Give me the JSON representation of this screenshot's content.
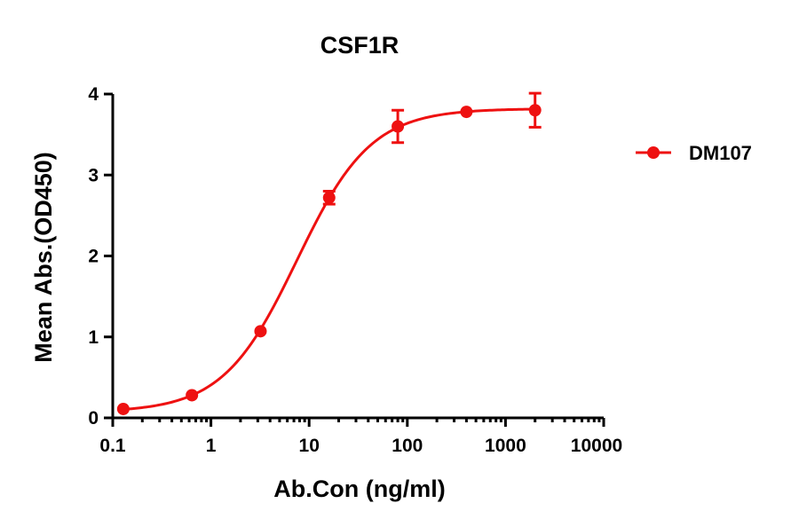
{
  "chart_data": {
    "type": "scatter",
    "title": "CSF1R",
    "xlabel": "Ab.Con (ng/ml)",
    "ylabel": "Mean Abs.(OD450)",
    "x_scale": "log",
    "xlim": [
      0.1,
      10000
    ],
    "ylim": [
      0,
      4
    ],
    "x_ticks": [
      "0.1",
      "1",
      "10",
      "100",
      "1000",
      "10000"
    ],
    "y_ticks": [
      "0",
      "1",
      "2",
      "3",
      "4"
    ],
    "grid": false,
    "legend_position": "right",
    "series": [
      {
        "name": "DM107",
        "color": "#ee1111",
        "marker": "circle",
        "fit": "sigmoidal 4PL",
        "points": [
          {
            "x": 0.128,
            "y": 0.11,
            "err": 0.02
          },
          {
            "x": 0.64,
            "y": 0.28,
            "err": 0.03
          },
          {
            "x": 3.2,
            "y": 1.07,
            "err": 0.03
          },
          {
            "x": 16,
            "y": 2.72,
            "err": 0.08
          },
          {
            "x": 80,
            "y": 3.6,
            "err": 0.2
          },
          {
            "x": 400,
            "y": 3.78,
            "err": 0.03
          },
          {
            "x": 2000,
            "y": 3.8,
            "err": 0.21
          }
        ]
      }
    ]
  }
}
